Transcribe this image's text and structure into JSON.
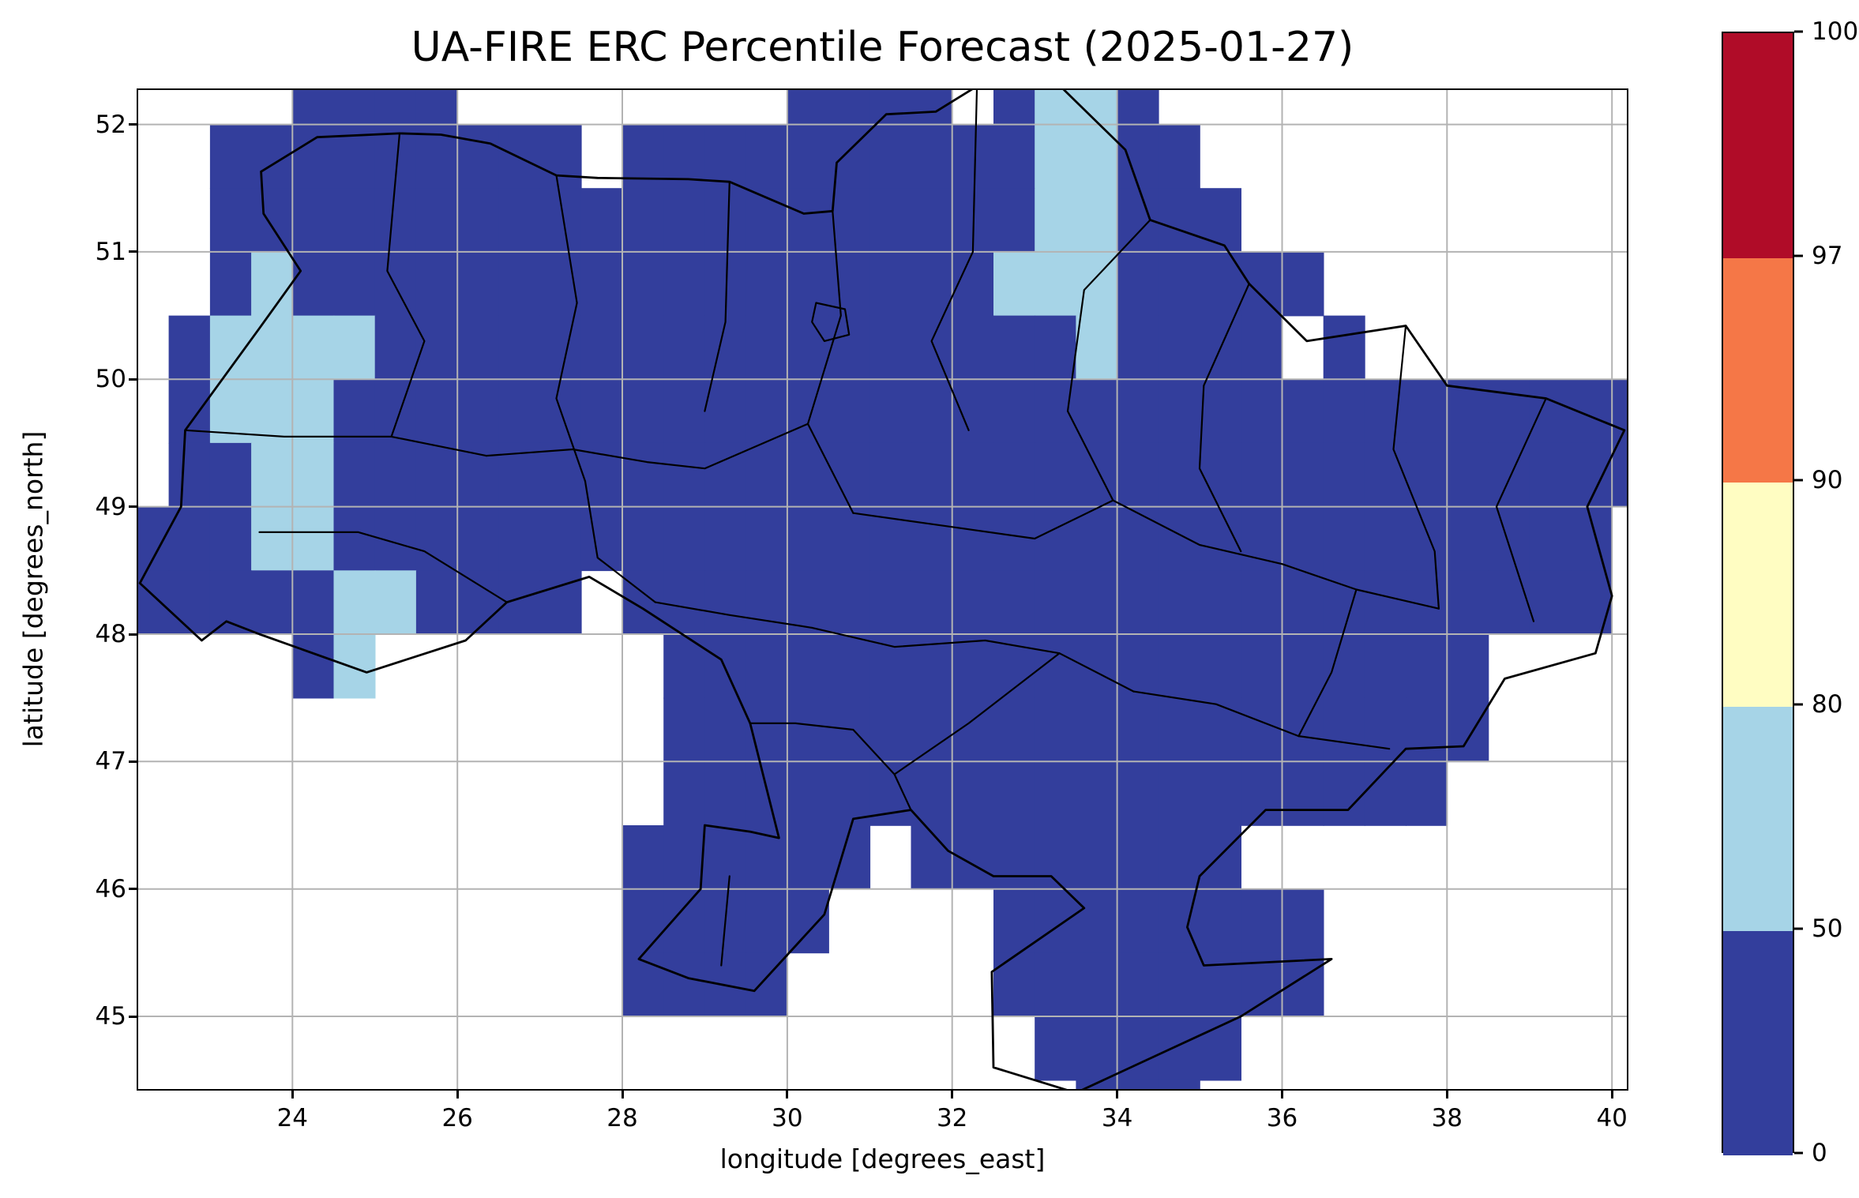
{
  "figure": {
    "background": "#ffffff"
  },
  "chart_data": {
    "type": "heatmap",
    "title": "UA-FIRE ERC Percentile Forecast (2025-01-27)",
    "xlabel": "longitude [degrees_east]",
    "ylabel": "latitude [degrees_north]",
    "xlim": [
      22.13,
      40.18
    ],
    "ylim": [
      44.43,
      52.27
    ],
    "xticks": [
      24,
      26,
      28,
      30,
      32,
      34,
      36,
      38,
      40
    ],
    "yticks": [
      45,
      46,
      47,
      48,
      49,
      50,
      51,
      52
    ],
    "grid": true,
    "grid_color": "#b3b3b3",
    "colorbar": {
      "levels": [
        0,
        50,
        80,
        90,
        97,
        100
      ],
      "tick_labels": [
        "0",
        "50",
        "80",
        "90",
        "97",
        "100"
      ],
      "colors": [
        "#333e9c",
        "#a6d4e7",
        "#fffdc2",
        "#f57747",
        "#b00c28"
      ],
      "position": "right"
    },
    "raster": {
      "description": "ERC percentile classes over Ukraine; B = 0-50 percentile (dark blue), L = 50-80 percentile (light blue), . = no data",
      "lon_start": 22.0,
      "lat_start": 52.5,
      "cell_deg": 0.5,
      "cell_colors": {
        "B": "#333e9c",
        "L": "#a6d4e7"
      },
      "rows": [
        "....BBBB........BBBB.BLLB............",
        "..BBBBBBBBB.BBBBBBBBBBLLBB...........",
        "..BBBBBBBBBBBBBBBBBBBBLLBBB..........",
        "..BLBBBBBBBBBBBBBBBBBLLLBBBBB........",
        ".BLLLLBBBBBBBBBBBBBBBBBLBBBB.B.......",
        ".BLLLBBBBBBBBBBBBBBBBBBBBBBBBBBBBBBBB",
        ".BBLLBBBBBBBBBBBBBBBBBBBBBBBBBBBBBBBB",
        "BBBLLBBBBBBBBBBBBBBBBBBBBBBBBBBBBBBB.",
        "BBBBBLLBBBB.BBBBBBBBBBBBBBBBBBBBBBBB.",
        "....BL.......BBBBBBBBBBBBBBBBBBBB...",
        ".............BBBBBBBBBBBBBBBBBBBB....",
        ".............BBBBBBBBBBBBBBBBBBB.....",
        "............BBBBBB.BBBBBBBB..........",
        "............BBBBB....BBBBBBBB........",
        "............BBBB.....BBBBBBBB........",
        "......................BBBBB..........",
        ".......................BBB..........."
      ]
    },
    "borders": {
      "outline": [
        [
          23.62,
          51.63
        ],
        [
          24.3,
          51.9
        ],
        [
          25.3,
          51.93
        ],
        [
          25.8,
          51.92
        ],
        [
          26.4,
          51.85
        ],
        [
          27.2,
          51.6
        ],
        [
          27.7,
          51.58
        ],
        [
          28.8,
          51.57
        ],
        [
          29.3,
          51.55
        ],
        [
          30.2,
          51.3
        ],
        [
          30.55,
          51.32
        ],
        [
          30.6,
          51.7
        ],
        [
          31.2,
          52.08
        ],
        [
          31.8,
          52.1
        ],
        [
          32.3,
          52.3
        ],
        [
          33.2,
          52.37
        ],
        [
          34.1,
          51.8
        ],
        [
          34.4,
          51.25
        ],
        [
          35.3,
          51.05
        ],
        [
          35.6,
          50.75
        ],
        [
          36.3,
          50.3
        ],
        [
          37.5,
          50.42
        ],
        [
          38.0,
          49.95
        ],
        [
          39.2,
          49.85
        ],
        [
          40.15,
          49.6
        ],
        [
          39.7,
          49.0
        ],
        [
          40.0,
          48.3
        ],
        [
          39.8,
          47.85
        ],
        [
          38.7,
          47.65
        ],
        [
          38.2,
          47.12
        ],
        [
          37.5,
          47.1
        ],
        [
          36.8,
          46.62
        ],
        [
          35.8,
          46.62
        ],
        [
          35.0,
          46.1
        ],
        [
          34.85,
          45.7
        ],
        [
          35.05,
          45.4
        ],
        [
          36.6,
          45.45
        ],
        [
          35.5,
          45.0
        ],
        [
          34.5,
          44.7
        ],
        [
          33.5,
          44.4
        ],
        [
          32.5,
          44.6
        ],
        [
          32.48,
          45.35
        ],
        [
          33.6,
          45.85
        ],
        [
          33.2,
          46.1
        ],
        [
          32.5,
          46.1
        ],
        [
          31.95,
          46.3
        ],
        [
          31.5,
          46.62
        ],
        [
          30.8,
          46.55
        ],
        [
          30.45,
          45.8
        ],
        [
          29.6,
          45.2
        ],
        [
          28.8,
          45.3
        ],
        [
          28.2,
          45.45
        ],
        [
          28.95,
          46.0
        ],
        [
          29.0,
          46.5
        ],
        [
          29.55,
          46.45
        ],
        [
          29.9,
          46.4
        ],
        [
          29.55,
          47.3
        ],
        [
          29.2,
          47.8
        ],
        [
          28.25,
          48.2
        ],
        [
          27.6,
          48.45
        ],
        [
          26.6,
          48.25
        ],
        [
          26.1,
          47.95
        ],
        [
          24.9,
          47.7
        ],
        [
          23.6,
          48.0
        ],
        [
          23.2,
          48.1
        ],
        [
          22.9,
          47.95
        ],
        [
          22.15,
          48.4
        ],
        [
          22.65,
          49.0
        ],
        [
          22.7,
          49.6
        ],
        [
          23.6,
          50.4
        ],
        [
          24.1,
          50.85
        ],
        [
          23.65,
          51.3
        ],
        [
          23.62,
          51.63
        ]
      ],
      "internal": [
        [
          [
            25.3,
            51.93
          ],
          [
            25.15,
            50.85
          ],
          [
            25.6,
            50.3
          ],
          [
            25.2,
            49.55
          ]
        ],
        [
          [
            27.2,
            51.6
          ],
          [
            27.45,
            50.6
          ],
          [
            27.2,
            49.85
          ],
          [
            27.55,
            49.2
          ]
        ],
        [
          [
            29.3,
            51.55
          ],
          [
            29.25,
            50.45
          ],
          [
            29.0,
            49.75
          ]
        ],
        [
          [
            30.55,
            51.32
          ],
          [
            30.65,
            50.5
          ],
          [
            30.25,
            49.65
          ],
          [
            30.8,
            48.95
          ]
        ],
        [
          [
            32.3,
            52.3
          ],
          [
            32.25,
            51.0
          ],
          [
            31.75,
            50.3
          ],
          [
            32.2,
            49.6
          ]
        ],
        [
          [
            34.4,
            51.25
          ],
          [
            33.6,
            50.7
          ],
          [
            33.4,
            49.75
          ],
          [
            33.95,
            49.05
          ]
        ],
        [
          [
            35.6,
            50.75
          ],
          [
            35.05,
            49.95
          ],
          [
            35.0,
            49.3
          ],
          [
            35.5,
            48.65
          ]
        ],
        [
          [
            37.5,
            50.42
          ],
          [
            37.35,
            49.45
          ],
          [
            37.85,
            48.65
          ],
          [
            37.9,
            48.2
          ]
        ],
        [
          [
            39.2,
            49.85
          ],
          [
            38.6,
            49.0
          ],
          [
            39.05,
            48.1
          ]
        ],
        [
          [
            22.7,
            49.6
          ],
          [
            23.9,
            49.55
          ],
          [
            25.2,
            49.55
          ],
          [
            26.35,
            49.4
          ]
        ],
        [
          [
            23.6,
            48.8
          ],
          [
            24.8,
            48.8
          ],
          [
            25.6,
            48.65
          ],
          [
            26.6,
            48.25
          ]
        ],
        [
          [
            26.35,
            49.4
          ],
          [
            27.4,
            49.45
          ],
          [
            28.3,
            49.35
          ],
          [
            29.0,
            49.3
          ],
          [
            30.25,
            49.65
          ]
        ],
        [
          [
            27.55,
            49.2
          ],
          [
            27.7,
            48.6
          ],
          [
            28.4,
            48.25
          ],
          [
            29.3,
            48.15
          ],
          [
            30.3,
            48.05
          ]
        ],
        [
          [
            30.8,
            48.95
          ],
          [
            31.9,
            48.85
          ],
          [
            33.0,
            48.75
          ],
          [
            33.95,
            49.05
          ]
        ],
        [
          [
            30.3,
            48.05
          ],
          [
            31.3,
            47.9
          ],
          [
            32.4,
            47.95
          ],
          [
            33.3,
            47.85
          ],
          [
            34.2,
            47.55
          ]
        ],
        [
          [
            33.95,
            49.05
          ],
          [
            35.0,
            48.7
          ],
          [
            36.0,
            48.55
          ],
          [
            36.9,
            48.35
          ],
          [
            37.9,
            48.2
          ]
        ],
        [
          [
            34.2,
            47.55
          ],
          [
            35.2,
            47.45
          ],
          [
            36.2,
            47.2
          ],
          [
            37.3,
            47.1
          ]
        ],
        [
          [
            29.55,
            47.3
          ],
          [
            30.1,
            47.3
          ],
          [
            30.8,
            47.25
          ],
          [
            31.3,
            46.9
          ],
          [
            31.5,
            46.62
          ]
        ],
        [
          [
            31.3,
            46.9
          ],
          [
            32.2,
            47.3
          ],
          [
            33.3,
            47.85
          ]
        ],
        [
          [
            36.2,
            47.2
          ],
          [
            36.6,
            47.7
          ],
          [
            36.9,
            48.35
          ]
        ],
        [
          [
            29.2,
            45.4
          ],
          [
            29.3,
            46.1
          ]
        ],
        [
          [
            30.35,
            50.6
          ],
          [
            30.7,
            50.55
          ],
          [
            30.75,
            50.35
          ],
          [
            30.45,
            50.3
          ],
          [
            30.3,
            50.45
          ],
          [
            30.35,
            50.6
          ]
        ]
      ]
    }
  }
}
